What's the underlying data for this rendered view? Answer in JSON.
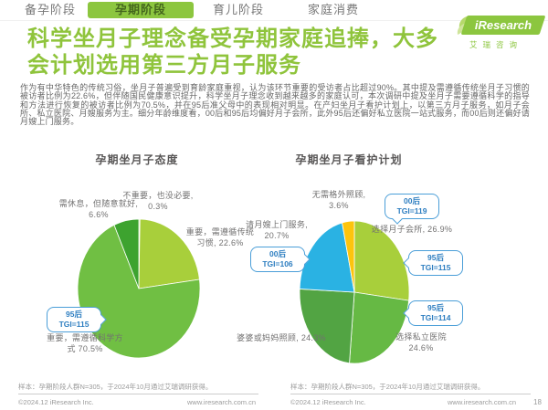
{
  "tabs": {
    "items": [
      {
        "label": "备孕阶段",
        "active": false
      },
      {
        "label": "孕期阶段",
        "active": true
      },
      {
        "label": "育儿阶段",
        "active": false
      },
      {
        "label": "家庭消费",
        "active": false
      }
    ]
  },
  "logo": {
    "brand": "iResearch",
    "brand_cn": "艾瑞咨询",
    "accent_color": "#8cc63f"
  },
  "headline": {
    "line1": "科学坐月子理念备受孕期家庭追捧，大多",
    "line2": "会计划选用第三方月子服务",
    "color": "#8fc43c"
  },
  "paragraph": "作为有中华特色的传统习俗，坐月子普遍受到育龄家庭重视，认为该环节重要的受访者占比超过90%。其中提及需遵循传统坐月子习惯的被访者比例为22.6%，但伴随国民健康意识提升，科学坐月子理念收到越来越多的家庭认可，本次调研中提及坐月子需要遵循科学的指导和方法进行恢复的被访者比例为70.5%，并在95后准父母中的表现相对明显。在产妇坐月子看护计划上，以第三方月子服务，如月子会所、私立医院、月嫂服务为主。细分年龄维度看，00后和95后均偏好月子会所，此外95后还偏好私立医院一站式服务，而00后则还偏好请月嫂上门服务。",
  "chart_data": [
    {
      "type": "pie",
      "title": "孕期坐月子态度",
      "unit": "%",
      "start_angle_deg": -90,
      "clockwise": true,
      "labels_position": "outside",
      "slices": [
        {
          "label": "不重要，也没必要",
          "value": 0.3,
          "color": "#c2e077",
          "display": "不重要，也没必要, 0.3%"
        },
        {
          "label": "重要，需遵循传统习惯",
          "value": 22.6,
          "color": "#a8cf3b",
          "display": "重要，需遵循传统习惯, 22.6%"
        },
        {
          "label": "重要，需遵循科学方式",
          "value": 70.5,
          "color": "#70bf43",
          "display": "重要，需遵循科学方式 70.5%"
        },
        {
          "label": "需休息，但随意就好",
          "value": 6.6,
          "color": "#3da32f",
          "display": "需休息，但随意就好, 6.6%"
        }
      ],
      "annotations": [
        {
          "group": "95后",
          "tgi": "TGI=115",
          "target": "重要，需遵循科学方式"
        }
      ]
    },
    {
      "type": "pie",
      "title": "孕期坐月子看护计划",
      "unit": "%",
      "start_angle_deg": -90,
      "clockwise": true,
      "labels_position": "outside",
      "slices": [
        {
          "label": "选择月子会所",
          "value": 26.9,
          "color": "#a8cf3b",
          "display": "选择月子会所, 26.9%"
        },
        {
          "label": "选择私立医院",
          "value": 24.6,
          "color": "#66b944",
          "display": "选择私立医院 24.6%"
        },
        {
          "label": "婆婆或妈妈照顾",
          "value": 24.3,
          "color": "#52a443",
          "display": "婆婆或妈妈照顾, 24.3%"
        },
        {
          "label": "请月嫂上门服务",
          "value": 20.7,
          "color": "#2ab2e3",
          "display": "请月嫂上门服务, 20.7%"
        },
        {
          "label": "无需格外照顾",
          "value": 3.6,
          "color": "#fdc40d",
          "display": "无需格外照顾, 3.6%"
        }
      ],
      "annotations": [
        {
          "group": "00后",
          "tgi": "TGI=119",
          "target": "选择月子会所"
        },
        {
          "group": "95后",
          "tgi": "TGI=115",
          "target": "选择月子会所"
        },
        {
          "group": "95后",
          "tgi": "TGI=114",
          "target": "选择私立医院"
        },
        {
          "group": "00后",
          "tgi": "TGI=106",
          "target": "请月嫂上门服务"
        }
      ]
    }
  ],
  "footer": {
    "sample_note": "样本：孕期阶段人群N=305，于2024年10月通过艾瑞调研获得。",
    "copyright": "©2024.12 iResearch Inc.",
    "url": "www.iresearch.com.cn",
    "page": "18"
  }
}
